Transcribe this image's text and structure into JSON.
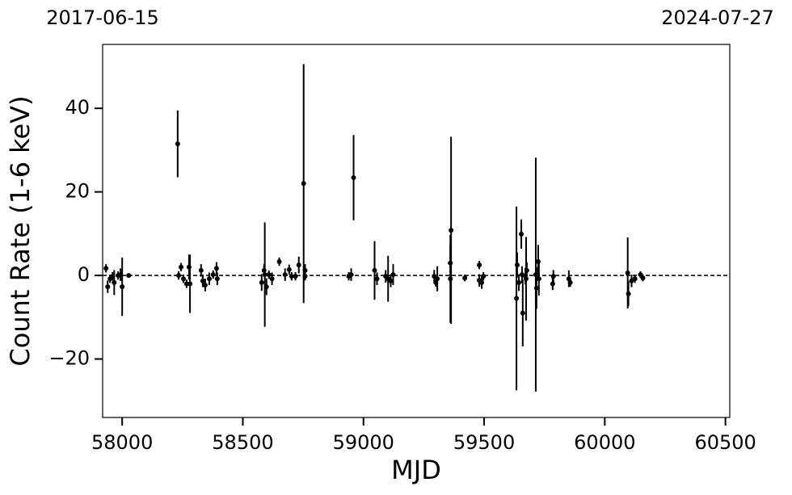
{
  "chart_data": {
    "type": "errorbar",
    "x_label": "MJD",
    "y_label": "Count Rate (1-6 keV)",
    "xlim": [
      57919,
      60518
    ],
    "ylim": [
      -34,
      55.3
    ],
    "xticks": [
      58000,
      58500,
      59000,
      59500,
      60000,
      60500
    ],
    "yticks": [
      40,
      20,
      0,
      {
        "value": -20,
        "label": "−20"
      }
    ],
    "top_xticks": [
      {
        "value": 57919,
        "label": "2017-06-15"
      },
      {
        "value": 60518,
        "label": "2024-07-27"
      }
    ],
    "hline": 0,
    "color": "#000000",
    "x": [
      57933,
      57940,
      57950,
      57960,
      57967,
      57983,
      57993,
      58000,
      58027,
      58230,
      58234,
      58244,
      58254,
      58267,
      58277,
      58281,
      58327,
      58334,
      58344,
      58361,
      58377,
      58391,
      58394,
      58578,
      58588,
      58591,
      58598,
      58608,
      58621,
      58651,
      58675,
      58692,
      58702,
      58718,
      58732,
      58752,
      58758,
      58758,
      58939,
      58949,
      58959,
      59046,
      59056,
      59092,
      59102,
      59113,
      59123,
      59293,
      59300,
      59306,
      59360,
      59363,
      59360,
      59420,
      59480,
      59480,
      59490,
      59497,
      59634,
      59637,
      59644,
      59654,
      59657,
      59660,
      59671,
      59674,
      59677,
      59714,
      59717,
      59724,
      59727,
      59784,
      59787,
      59851,
      59857,
      60095,
      60098,
      60111,
      60125,
      60148,
      60158
    ],
    "values": [
      1.7,
      -2.7,
      -0.8,
      -0.2,
      -1.7,
      0,
      0.2,
      -2.7,
      0,
      31.5,
      0,
      2,
      -0.8,
      -2,
      2,
      -2,
      1.2,
      -1.3,
      -2.3,
      -0.8,
      0.2,
      1.7,
      -0.8,
      -1.7,
      1.2,
      0.2,
      -2.7,
      0.2,
      -0.8,
      3.3,
      0.2,
      1.4,
      -0.2,
      -0.2,
      2.5,
      22,
      1.2,
      -0.2,
      -0.2,
      0.2,
      23.4,
      1.2,
      -0.8,
      -0.2,
      -0.8,
      -1.3,
      0.2,
      -0.2,
      -1.7,
      -0.8,
      3,
      10.8,
      -0.8,
      -0.6,
      2.5,
      -1.2,
      -1.7,
      -0.2,
      -5.5,
      2.5,
      -1.7,
      9.9,
      0.2,
      -9,
      -0.2,
      -0.8,
      1.2,
      0.2,
      -3,
      3.3,
      -0.8,
      -2,
      -0.2,
      -0.8,
      -1.7,
      0.6,
      -4.4,
      -1.3,
      -0.8,
      0.2,
      -0.6
    ],
    "errors": [
      1,
      1.5,
      1,
      1,
      3,
      1,
      1.5,
      7,
      0.5,
      8,
      1,
      1,
      1,
      1,
      3,
      7,
      1.5,
      1.5,
      1.5,
      1.5,
      1,
      1.5,
      1.5,
      2,
      1.5,
      12.5,
      2,
      1,
      1.5,
      1,
      1.5,
      1.2,
      1,
      1,
      2,
      28.6,
      1.5,
      1,
      1,
      1.5,
      10.2,
      7,
      1.5,
      1.5,
      5.5,
      1.5,
      2.5,
      1.5,
      1,
      3,
      4.5,
      22.4,
      10.5,
      0.8,
      1,
      1.5,
      1.5,
      1,
      22,
      3,
      2,
      3.5,
      2,
      8,
      2,
      10,
      2,
      28,
      5,
      4,
      4,
      1.5,
      1.5,
      2,
      1,
      8.5,
      3,
      1.5,
      1,
      0.8,
      0.8
    ]
  }
}
